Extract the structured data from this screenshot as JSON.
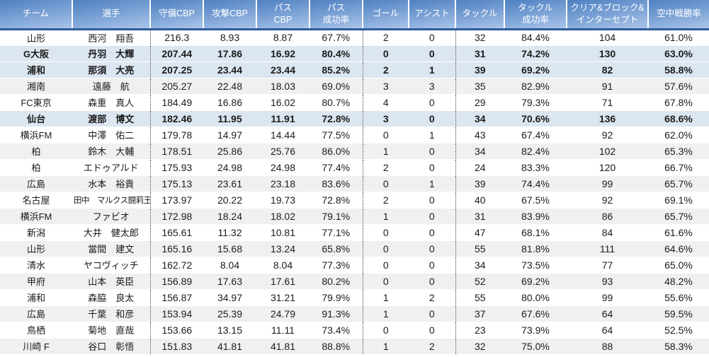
{
  "colors": {
    "header_gradient_top": "#4e80c1",
    "header_gradient_bottom": "#aac4e8",
    "header_border_bottom": "#2e5b9d",
    "header_text": "#ffffff",
    "row_band_gray": "#f0f0f0",
    "row_highlight_blue": "#dce6f1",
    "body_text": "#1b1b1b",
    "page_break_line": "#3f3f3f"
  },
  "table": {
    "columns": [
      {
        "key": "team",
        "label": "チーム",
        "label_lines": [
          "チーム"
        ]
      },
      {
        "key": "player",
        "label": "選手",
        "label_lines": [
          "選手"
        ]
      },
      {
        "key": "def_cbp",
        "label": "守備CBP",
        "label_lines": [
          "守備CBP"
        ]
      },
      {
        "key": "atk_cbp",
        "label": "攻撃CBP",
        "label_lines": [
          "攻撃CBP"
        ]
      },
      {
        "key": "pass_cbp",
        "label": "パス CBP",
        "label_lines": [
          "パス",
          "CBP"
        ]
      },
      {
        "key": "pass_rate",
        "label": "パス 成功率",
        "label_lines": [
          "パス",
          "成功率"
        ]
      },
      {
        "key": "goals",
        "label": "ゴール",
        "label_lines": [
          "ゴール"
        ]
      },
      {
        "key": "assists",
        "label": "アシスト",
        "label_lines": [
          "アシスト"
        ]
      },
      {
        "key": "tackles",
        "label": "タックル",
        "label_lines": [
          "タックル"
        ]
      },
      {
        "key": "tackle_rate",
        "label": "タックル 成功率",
        "label_lines": [
          "タックル",
          "成功率"
        ]
      },
      {
        "key": "clear_block",
        "label": "クリア&ブロック&インターセプト",
        "label_lines": [
          "クリア&ブロック&",
          "インターセプト"
        ]
      },
      {
        "key": "aerial_rate",
        "label": "空中戦勝率",
        "label_lines": [
          "空中戦勝率"
        ]
      }
    ],
    "page_break_after_keys": [
      "player",
      "pass_rate",
      "assists"
    ],
    "rows": [
      {
        "team": "山形",
        "player": "西河　翔吾",
        "def_cbp": "216.3",
        "atk_cbp": "8.93",
        "pass_cbp": "8.87",
        "pass_rate": "67.7%",
        "goals": "2",
        "assists": "0",
        "tackles": "32",
        "tackle_rate": "84.4%",
        "clear_block": "104",
        "aerial_rate": "61.0%",
        "bold": false,
        "band": "white"
      },
      {
        "team": "G大阪",
        "player": "丹羽　大輝",
        "def_cbp": "207.44",
        "atk_cbp": "17.86",
        "pass_cbp": "16.92",
        "pass_rate": "80.4%",
        "goals": "0",
        "assists": "0",
        "tackles": "31",
        "tackle_rate": "74.2%",
        "clear_block": "130",
        "aerial_rate": "63.0%",
        "bold": true,
        "band": "blue"
      },
      {
        "team": "浦和",
        "player": "那須　大亮",
        "def_cbp": "207.25",
        "atk_cbp": "23.44",
        "pass_cbp": "23.44",
        "pass_rate": "85.2%",
        "goals": "2",
        "assists": "1",
        "tackles": "39",
        "tackle_rate": "69.2%",
        "clear_block": "82",
        "aerial_rate": "58.8%",
        "bold": true,
        "band": "blue"
      },
      {
        "team": "湘南",
        "player": "遠藤　航",
        "def_cbp": "205.27",
        "atk_cbp": "22.48",
        "pass_cbp": "18.03",
        "pass_rate": "69.0%",
        "goals": "3",
        "assists": "3",
        "tackles": "35",
        "tackle_rate": "82.9%",
        "clear_block": "91",
        "aerial_rate": "57.6%",
        "bold": false,
        "band": "gray"
      },
      {
        "team": "FC東京",
        "player": "森重　真人",
        "def_cbp": "184.49",
        "atk_cbp": "16.86",
        "pass_cbp": "16.02",
        "pass_rate": "80.7%",
        "goals": "4",
        "assists": "0",
        "tackles": "29",
        "tackle_rate": "79.3%",
        "clear_block": "71",
        "aerial_rate": "67.8%",
        "bold": false,
        "band": "white"
      },
      {
        "team": "仙台",
        "player": "渡部　博文",
        "def_cbp": "182.46",
        "atk_cbp": "11.95",
        "pass_cbp": "11.91",
        "pass_rate": "72.8%",
        "goals": "3",
        "assists": "0",
        "tackles": "34",
        "tackle_rate": "70.6%",
        "clear_block": "136",
        "aerial_rate": "68.6%",
        "bold": true,
        "band": "blue"
      },
      {
        "team": "横浜FM",
        "player": "中澤　佑二",
        "def_cbp": "179.78",
        "atk_cbp": "14.97",
        "pass_cbp": "14.44",
        "pass_rate": "77.5%",
        "goals": "0",
        "assists": "1",
        "tackles": "43",
        "tackle_rate": "67.4%",
        "clear_block": "92",
        "aerial_rate": "62.0%",
        "bold": false,
        "band": "white"
      },
      {
        "team": "柏",
        "player": "鈴木　大輔",
        "def_cbp": "178.51",
        "atk_cbp": "25.86",
        "pass_cbp": "25.76",
        "pass_rate": "86.0%",
        "goals": "1",
        "assists": "0",
        "tackles": "34",
        "tackle_rate": "82.4%",
        "clear_block": "102",
        "aerial_rate": "65.3%",
        "bold": false,
        "band": "gray"
      },
      {
        "team": "柏",
        "player": "エドゥアルド",
        "def_cbp": "175.93",
        "atk_cbp": "24.98",
        "pass_cbp": "24.98",
        "pass_rate": "77.4%",
        "goals": "2",
        "assists": "0",
        "tackles": "24",
        "tackle_rate": "83.3%",
        "clear_block": "120",
        "aerial_rate": "66.7%",
        "bold": false,
        "band": "white"
      },
      {
        "team": "広島",
        "player": "水本　裕貴",
        "def_cbp": "175.13",
        "atk_cbp": "23.61",
        "pass_cbp": "23.18",
        "pass_rate": "83.6%",
        "goals": "0",
        "assists": "1",
        "tackles": "39",
        "tackle_rate": "74.4%",
        "clear_block": "99",
        "aerial_rate": "65.7%",
        "bold": false,
        "band": "gray"
      },
      {
        "team": "名古屋",
        "player": "田中　マルクス闘莉王",
        "def_cbp": "173.97",
        "atk_cbp": "20.22",
        "pass_cbp": "19.73",
        "pass_rate": "72.8%",
        "goals": "2",
        "assists": "0",
        "tackles": "40",
        "tackle_rate": "67.5%",
        "clear_block": "92",
        "aerial_rate": "69.1%",
        "bold": false,
        "band": "white"
      },
      {
        "team": "横浜FM",
        "player": "ファビオ",
        "def_cbp": "172.98",
        "atk_cbp": "18.24",
        "pass_cbp": "18.02",
        "pass_rate": "79.1%",
        "goals": "1",
        "assists": "0",
        "tackles": "31",
        "tackle_rate": "83.9%",
        "clear_block": "86",
        "aerial_rate": "65.7%",
        "bold": false,
        "band": "gray"
      },
      {
        "team": "新潟",
        "player": "大井　健太郎",
        "def_cbp": "165.61",
        "atk_cbp": "11.32",
        "pass_cbp": "10.81",
        "pass_rate": "77.1%",
        "goals": "0",
        "assists": "0",
        "tackles": "47",
        "tackle_rate": "68.1%",
        "clear_block": "84",
        "aerial_rate": "61.6%",
        "bold": false,
        "band": "white"
      },
      {
        "team": "山形",
        "player": "當間　建文",
        "def_cbp": "165.16",
        "atk_cbp": "15.68",
        "pass_cbp": "13.24",
        "pass_rate": "65.8%",
        "goals": "0",
        "assists": "0",
        "tackles": "55",
        "tackle_rate": "81.8%",
        "clear_block": "111",
        "aerial_rate": "64.6%",
        "bold": false,
        "band": "gray"
      },
      {
        "team": "清水",
        "player": "ヤコヴィッチ",
        "def_cbp": "162.72",
        "atk_cbp": "8.04",
        "pass_cbp": "8.04",
        "pass_rate": "77.3%",
        "goals": "0",
        "assists": "0",
        "tackles": "34",
        "tackle_rate": "73.5%",
        "clear_block": "77",
        "aerial_rate": "65.0%",
        "bold": false,
        "band": "white"
      },
      {
        "team": "甲府",
        "player": "山本　英臣",
        "def_cbp": "156.89",
        "atk_cbp": "17.63",
        "pass_cbp": "17.61",
        "pass_rate": "80.2%",
        "goals": "0",
        "assists": "0",
        "tackles": "52",
        "tackle_rate": "69.2%",
        "clear_block": "93",
        "aerial_rate": "48.2%",
        "bold": false,
        "band": "gray"
      },
      {
        "team": "浦和",
        "player": "森脇　良太",
        "def_cbp": "156.87",
        "atk_cbp": "34.97",
        "pass_cbp": "31.21",
        "pass_rate": "79.9%",
        "goals": "1",
        "assists": "2",
        "tackles": "55",
        "tackle_rate": "80.0%",
        "clear_block": "99",
        "aerial_rate": "55.6%",
        "bold": false,
        "band": "white"
      },
      {
        "team": "広島",
        "player": "千葉　和彦",
        "def_cbp": "153.94",
        "atk_cbp": "25.39",
        "pass_cbp": "24.79",
        "pass_rate": "91.3%",
        "goals": "1",
        "assists": "0",
        "tackles": "37",
        "tackle_rate": "67.6%",
        "clear_block": "64",
        "aerial_rate": "59.5%",
        "bold": false,
        "band": "gray"
      },
      {
        "team": "鳥栖",
        "player": "菊地　直哉",
        "def_cbp": "153.66",
        "atk_cbp": "13.15",
        "pass_cbp": "11.11",
        "pass_rate": "73.4%",
        "goals": "0",
        "assists": "0",
        "tackles": "23",
        "tackle_rate": "73.9%",
        "clear_block": "64",
        "aerial_rate": "52.5%",
        "bold": false,
        "band": "white"
      },
      {
        "team": "川崎 F",
        "player": "谷口　彰悟",
        "def_cbp": "151.83",
        "atk_cbp": "41.81",
        "pass_cbp": "41.81",
        "pass_rate": "88.8%",
        "goals": "1",
        "assists": "2",
        "tackles": "32",
        "tackle_rate": "75.0%",
        "clear_block": "88",
        "aerial_rate": "58.3%",
        "bold": false,
        "band": "gray"
      }
    ]
  }
}
